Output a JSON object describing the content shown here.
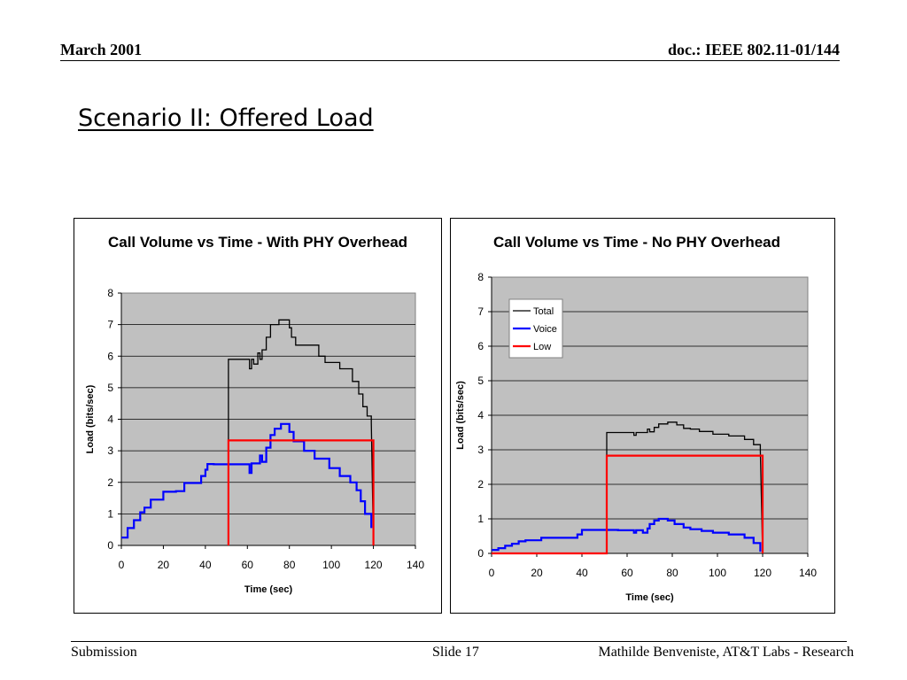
{
  "header": {
    "date": "March 2001",
    "doc": "doc.: IEEE 802.11-01/144"
  },
  "slide_title": "Scenario II: Offered Load",
  "footer": {
    "left": "Submission",
    "center": "Slide 17",
    "right": "Mathilde Benveniste, AT&T Labs - Research"
  },
  "colors": {
    "total": "#000000",
    "voice": "#0000FF",
    "low": "#FF0000",
    "plot_bg": "#C0C0C0",
    "grid": "#000000"
  },
  "chart_data": [
    {
      "type": "line",
      "title": "Call Volume vs Time - With PHY Overhead",
      "xlabel": "Time (sec)",
      "ylabel": "Load (bits/sec)",
      "xlim": [
        0,
        140
      ],
      "ylim": [
        0,
        8
      ],
      "xticks": [
        "0",
        "20",
        "40",
        "60",
        "80",
        "100",
        "120",
        "140"
      ],
      "yticks": [
        "0",
        "1",
        "2",
        "3",
        "4",
        "5",
        "6",
        "7",
        "8"
      ],
      "grid": true,
      "legend": null,
      "series": [
        {
          "key": "total",
          "x": [
            51,
            51,
            61,
            61,
            62,
            62,
            63,
            63,
            65,
            65,
            66,
            66,
            67,
            67,
            69,
            69,
            71,
            71,
            75,
            75,
            77,
            77,
            80,
            80,
            81,
            81,
            83,
            83,
            87,
            87,
            94,
            94,
            97,
            97,
            104,
            104,
            110,
            110,
            113,
            113,
            115,
            115,
            117,
            117,
            119,
            119,
            120
          ],
          "y": [
            0,
            5.9,
            5.9,
            5.6,
            5.6,
            5.9,
            5.9,
            5.75,
            5.75,
            6.1,
            6.1,
            5.9,
            5.9,
            6.2,
            6.2,
            6.6,
            6.6,
            7.0,
            7.0,
            7.15,
            7.15,
            7.15,
            7.15,
            6.9,
            6.9,
            6.6,
            6.6,
            6.35,
            6.35,
            6.35,
            6.35,
            6.0,
            6.0,
            5.8,
            5.8,
            5.6,
            5.6,
            5.2,
            5.2,
            4.8,
            4.8,
            4.4,
            4.4,
            4.1,
            4.1,
            3.9,
            0
          ]
        },
        {
          "key": "voice",
          "x": [
            0,
            3,
            3,
            6,
            6,
            9,
            9,
            11,
            11,
            14,
            14,
            20,
            20,
            26,
            26,
            30,
            30,
            38,
            38,
            40,
            40,
            41,
            41,
            44,
            44,
            51,
            61,
            61,
            62,
            62,
            66,
            66,
            67,
            67,
            69,
            69,
            71,
            71,
            73,
            73,
            76,
            76,
            80,
            80,
            82,
            82,
            87,
            87,
            92,
            92,
            99,
            99,
            104,
            104,
            109,
            109,
            112,
            112,
            114,
            114,
            116,
            116,
            119,
            119
          ],
          "y": [
            0.25,
            0.25,
            0.55,
            0.55,
            0.8,
            0.8,
            1.05,
            1.05,
            1.2,
            1.2,
            1.45,
            1.45,
            1.7,
            1.7,
            1.72,
            1.72,
            1.98,
            1.98,
            2.2,
            2.2,
            2.4,
            2.4,
            2.58,
            2.58,
            2.57,
            2.57,
            2.57,
            2.3,
            2.3,
            2.6,
            2.6,
            2.85,
            2.85,
            2.65,
            2.65,
            3.1,
            3.1,
            3.5,
            3.5,
            3.7,
            3.7,
            3.85,
            3.85,
            3.6,
            3.6,
            3.3,
            3.3,
            3.0,
            3.0,
            2.75,
            2.75,
            2.45,
            2.45,
            2.2,
            2.2,
            2.0,
            2.0,
            1.75,
            1.75,
            1.4,
            1.4,
            1.0,
            1.0,
            0.55
          ]
        },
        {
          "key": "low",
          "x": [
            51,
            51,
            120,
            120
          ],
          "y": [
            0,
            3.33,
            3.33,
            0
          ]
        }
      ]
    },
    {
      "type": "line",
      "title": "Call Volume vs Time - No PHY Overhead",
      "xlabel": "Time (sec)",
      "ylabel": "Load (bits/sec)",
      "xlim": [
        0,
        140
      ],
      "ylim": [
        0,
        8
      ],
      "xticks": [
        "0",
        "20",
        "40",
        "60",
        "80",
        "100",
        "120",
        "140"
      ],
      "yticks": [
        "0",
        "1",
        "2",
        "3",
        "4",
        "5",
        "6",
        "7",
        "8"
      ],
      "grid": true,
      "legend": "top-left",
      "series": [
        {
          "key": "total",
          "name": "Total",
          "x": [
            51,
            51,
            63,
            63,
            64,
            64,
            67,
            67,
            69,
            69,
            70,
            70,
            72,
            72,
            74,
            74,
            78,
            78,
            82,
            82,
            85,
            85,
            88,
            88,
            92,
            92,
            98,
            98,
            105,
            105,
            112,
            112,
            116,
            116,
            119,
            119,
            120
          ],
          "y": [
            0,
            3.5,
            3.5,
            3.42,
            3.42,
            3.5,
            3.5,
            3.5,
            3.5,
            3.6,
            3.6,
            3.52,
            3.52,
            3.65,
            3.65,
            3.75,
            3.75,
            3.8,
            3.8,
            3.72,
            3.72,
            3.62,
            3.62,
            3.6,
            3.6,
            3.53,
            3.53,
            3.45,
            3.45,
            3.4,
            3.4,
            3.3,
            3.3,
            3.15,
            3.15,
            2.98,
            0
          ]
        },
        {
          "key": "voice",
          "name": "Voice",
          "x": [
            0,
            3,
            3,
            6,
            6,
            9,
            9,
            12,
            12,
            15,
            15,
            22,
            22,
            38,
            38,
            40,
            40,
            56,
            56,
            63,
            63,
            64,
            64,
            67,
            67,
            69,
            69,
            70,
            70,
            72,
            72,
            74,
            74,
            78,
            78,
            81,
            81,
            85,
            85,
            88,
            88,
            93,
            93,
            98,
            98,
            105,
            105,
            112,
            112,
            116,
            116,
            119,
            119
          ],
          "y": [
            0.1,
            0.1,
            0.15,
            0.15,
            0.22,
            0.22,
            0.28,
            0.28,
            0.35,
            0.35,
            0.38,
            0.38,
            0.45,
            0.45,
            0.55,
            0.55,
            0.68,
            0.68,
            0.67,
            0.67,
            0.6,
            0.6,
            0.67,
            0.67,
            0.6,
            0.6,
            0.72,
            0.72,
            0.85,
            0.85,
            0.95,
            0.95,
            1.0,
            1.0,
            0.95,
            0.95,
            0.85,
            0.85,
            0.75,
            0.75,
            0.7,
            0.7,
            0.65,
            0.65,
            0.6,
            0.6,
            0.55,
            0.55,
            0.45,
            0.45,
            0.3,
            0.3,
            0.05
          ]
        },
        {
          "key": "low",
          "name": "Low",
          "x": [
            0,
            51,
            51,
            120,
            120
          ],
          "y": [
            0,
            0,
            2.83,
            2.83,
            0
          ]
        }
      ]
    }
  ]
}
